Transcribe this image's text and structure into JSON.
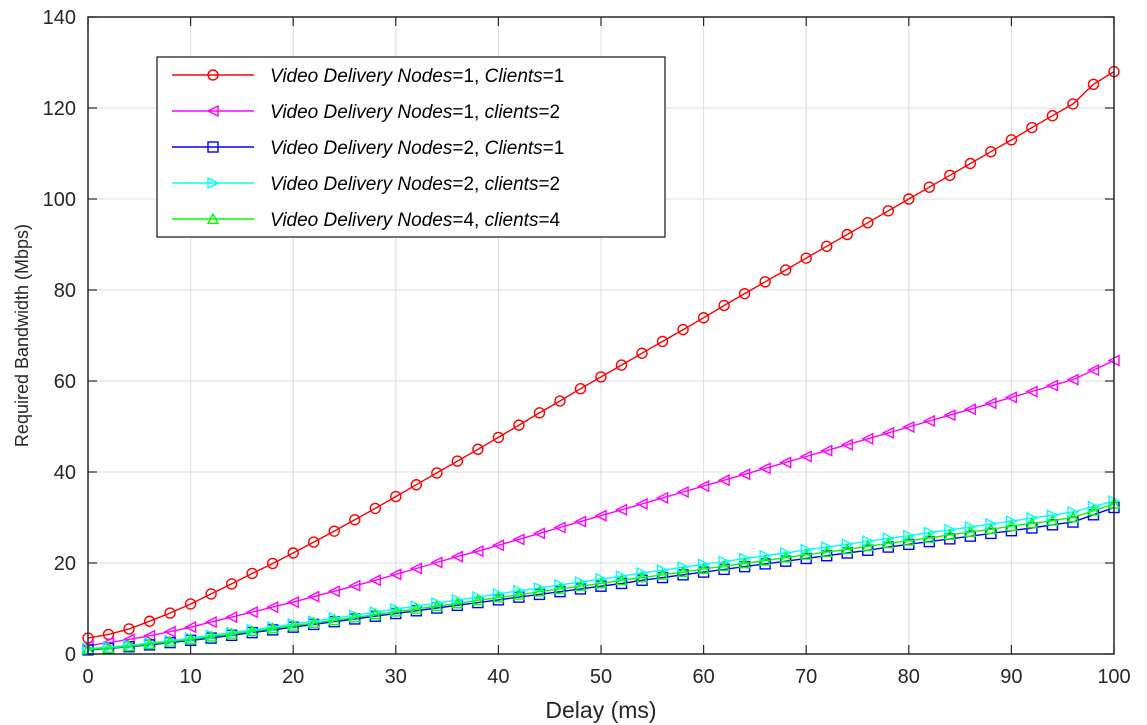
{
  "chart_data": {
    "type": "line",
    "title": "",
    "xlabel": "Delay (ms)",
    "ylabel": "Required Bandwidth (Mbps)",
    "xlim": [
      0,
      100
    ],
    "ylim": [
      0,
      140
    ],
    "xticks": [
      0,
      10,
      20,
      30,
      40,
      50,
      60,
      70,
      80,
      90,
      100
    ],
    "yticks": [
      0,
      20,
      40,
      60,
      80,
      100,
      120,
      140
    ],
    "grid": true,
    "legend_position": "top-left",
    "x": [
      0,
      2,
      4,
      6,
      8,
      10,
      12,
      14,
      16,
      18,
      20,
      22,
      24,
      26,
      28,
      30,
      32,
      34,
      36,
      38,
      40,
      42,
      44,
      46,
      48,
      50,
      52,
      54,
      56,
      58,
      60,
      62,
      64,
      66,
      68,
      70,
      72,
      74,
      76,
      78,
      80,
      82,
      84,
      86,
      88,
      90,
      92,
      94,
      96,
      98,
      100
    ],
    "series": [
      {
        "legend": {
          "italic_a": "Video Delivery Nodes",
          "eq_a": "=1, ",
          "italic_b": "Clients",
          "eq_b": "=1"
        },
        "color": "#ff0000",
        "marker": "circle",
        "values": [
          3.5,
          4.3,
          5.5,
          7.2,
          9.0,
          11.0,
          13.2,
          15.4,
          17.7,
          19.9,
          22.2,
          24.6,
          27.0,
          29.5,
          32.0,
          34.6,
          37.2,
          39.8,
          42.4,
          45.0,
          47.6,
          50.3,
          53.0,
          55.6,
          58.3,
          60.9,
          63.5,
          66.1,
          68.7,
          71.3,
          73.9,
          76.6,
          79.2,
          81.8,
          84.4,
          87.0,
          89.6,
          92.2,
          94.8,
          97.4,
          100.0,
          102.6,
          105.2,
          107.8,
          110.4,
          113.0,
          115.7,
          118.3,
          120.9,
          125.2,
          128.0
        ]
      },
      {
        "legend": {
          "italic_a": "Video Delivery Nodes",
          "eq_a": "=1, ",
          "italic_b": "clients",
          "eq_b": "=2"
        },
        "color": "#ff00ff",
        "marker": "triangle-left",
        "values": [
          1.8,
          2.5,
          3.2,
          4.0,
          4.9,
          5.9,
          7.0,
          8.1,
          9.2,
          10.3,
          11.4,
          12.6,
          13.8,
          15.0,
          16.2,
          17.5,
          18.8,
          20.1,
          21.4,
          22.6,
          23.9,
          25.2,
          26.5,
          27.8,
          29.1,
          30.4,
          31.7,
          33.0,
          34.3,
          35.6,
          36.9,
          38.2,
          39.5,
          40.8,
          42.1,
          43.4,
          44.7,
          46.0,
          47.3,
          48.6,
          49.9,
          51.2,
          52.5,
          53.8,
          55.1,
          56.4,
          57.7,
          59.0,
          60.3,
          62.4,
          64.5
        ]
      },
      {
        "legend": {
          "italic_a": "Video Delivery Nodes",
          "eq_a": "=2, ",
          "italic_b": "Clients",
          "eq_b": "=1"
        },
        "color": "#0000ff",
        "marker": "square",
        "values": [
          0.9,
          1.2,
          1.6,
          2.0,
          2.5,
          3.0,
          3.5,
          4.1,
          4.7,
          5.3,
          5.9,
          6.5,
          7.1,
          7.7,
          8.3,
          8.9,
          9.5,
          10.1,
          10.7,
          11.3,
          11.9,
          12.5,
          13.1,
          13.7,
          14.3,
          14.9,
          15.5,
          16.2,
          16.8,
          17.4,
          18.0,
          18.6,
          19.2,
          19.8,
          20.4,
          21.0,
          21.6,
          22.2,
          22.8,
          23.5,
          24.1,
          24.7,
          25.3,
          25.9,
          26.5,
          27.1,
          27.7,
          28.4,
          29.0,
          30.6,
          32.2
        ]
      },
      {
        "legend": {
          "italic_a": "Video Delivery Nodes",
          "eq_a": "=2, ",
          "italic_b": "clients",
          "eq_b": "=2"
        },
        "color": "#00ffff",
        "marker": "triangle-right",
        "values": [
          1.2,
          1.5,
          1.9,
          2.4,
          2.9,
          3.5,
          4.1,
          4.7,
          5.3,
          5.9,
          6.6,
          7.2,
          7.9,
          8.5,
          9.2,
          9.9,
          10.5,
          11.2,
          11.9,
          12.5,
          13.2,
          13.9,
          14.5,
          15.2,
          15.8,
          16.5,
          17.1,
          17.8,
          18.4,
          19.1,
          19.7,
          20.3,
          21.0,
          21.6,
          22.2,
          22.9,
          23.5,
          24.1,
          24.8,
          25.4,
          26.0,
          26.7,
          27.3,
          27.9,
          28.6,
          29.2,
          29.9,
          30.5,
          31.2,
          32.4,
          33.6
        ]
      },
      {
        "legend": {
          "italic_a": "Video Delivery Nodes",
          "eq_a": "=4, ",
          "italic_b": "clients",
          "eq_b": "=4"
        },
        "color": "#00ff00",
        "marker": "triangle-up",
        "values": [
          1.0,
          1.3,
          1.7,
          2.2,
          2.7,
          3.2,
          3.8,
          4.4,
          5.0,
          5.6,
          6.2,
          6.8,
          7.4,
          8.0,
          8.7,
          9.3,
          9.9,
          10.5,
          11.1,
          11.8,
          12.4,
          13.0,
          13.7,
          14.3,
          14.9,
          15.5,
          16.2,
          16.8,
          17.4,
          18.0,
          18.7,
          19.3,
          19.9,
          20.5,
          21.2,
          21.8,
          22.4,
          23.0,
          23.7,
          24.3,
          24.9,
          25.5,
          26.2,
          26.8,
          27.4,
          28.1,
          28.7,
          29.3,
          30.0,
          31.5,
          33.0
        ]
      }
    ]
  }
}
